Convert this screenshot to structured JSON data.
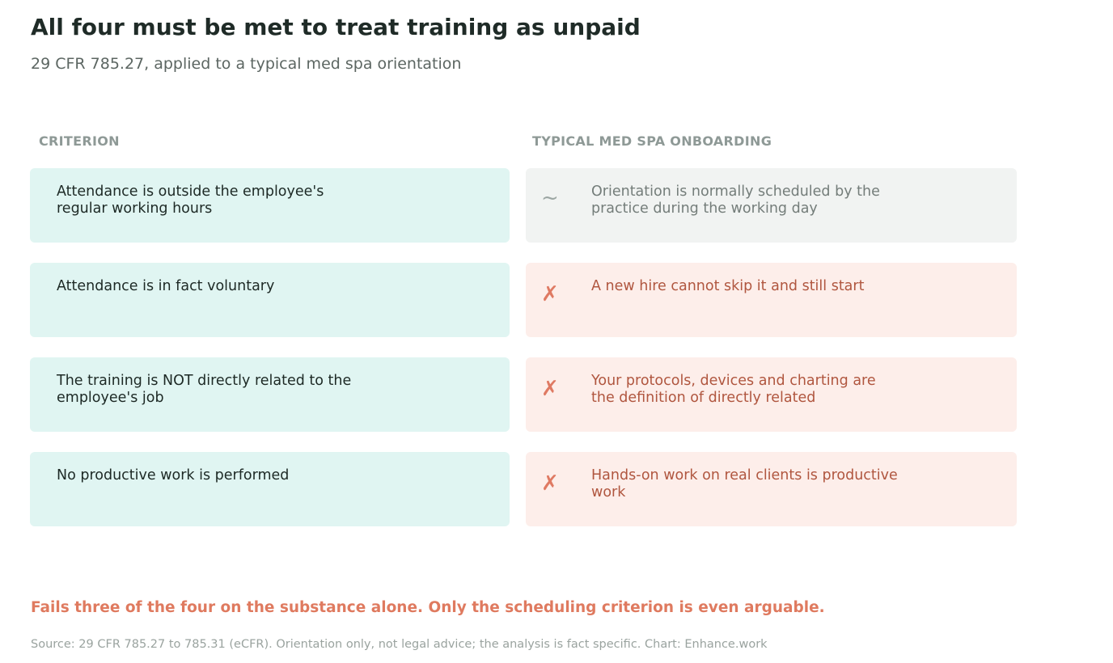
{
  "title": "All four must be met to treat training as unpaid",
  "subtitle": "29 CFR 785.27, applied to a typical med spa orientation",
  "columns": {
    "criterion": "CRITERION",
    "onboarding": "TYPICAL MED SPA ONBOARDING"
  },
  "rows": [
    {
      "criterion": "Attendance is outside the employee's regular working hours",
      "status": "arguable",
      "mark": "~",
      "mark_icon": "tilde-icon",
      "assessment": "Orientation is normally scheduled by the practice during the working day"
    },
    {
      "criterion": "Attendance is in fact voluntary",
      "status": "fails",
      "mark": "✗",
      "mark_icon": "cross-icon",
      "assessment": "A new hire cannot skip it and still start"
    },
    {
      "criterion": "The training is NOT directly related to the employee's job",
      "status": "fails",
      "mark": "✗",
      "mark_icon": "cross-icon",
      "assessment": "Your protocols, devices and charting are the definition of directly related"
    },
    {
      "criterion": "No productive work is performed",
      "status": "fails",
      "mark": "✗",
      "mark_icon": "cross-icon",
      "assessment": "Hands-on work on real clients is productive work"
    }
  ],
  "verdict": "Fails three of the four on the substance alone. Only the scheduling criterion is even arguable.",
  "source": "Source: 29 CFR 785.27 to 785.31 (eCFR). Orientation only, not legal advice; the analysis is fact specific.  Chart: Enhance.work",
  "colors": {
    "criterion_fill": "#e0f5f2",
    "arguable_fill": "#f1f3f2",
    "fail_fill": "#fdeeea",
    "fail_accent": "#df7a63",
    "fail_text": "#b0563f",
    "arguable_text": "#747d7a"
  }
}
